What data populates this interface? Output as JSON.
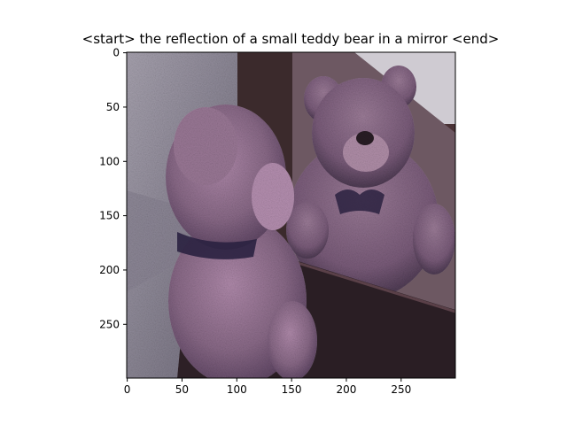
{
  "figure": {
    "title": "<start> the reflection of a small teddy bear in a mirror <end>",
    "image_alt": "reflection of a small teddy bear in a mirror",
    "image_size": [
      300,
      300
    ],
    "x_ticks": [
      0,
      50,
      100,
      150,
      200,
      250
    ],
    "y_ticks": [
      0,
      50,
      100,
      150,
      200,
      250
    ],
    "colors": {
      "background": "#ffffff",
      "axis": "#000000",
      "bear_fur": "#8a6a88",
      "bear_fur_light": "#a884a4",
      "bear_fur_dark": "#5d4660",
      "carpet": "#8d8796",
      "wood_frame": "#3b2a2c",
      "mirror_bg": "#7d6a74",
      "wall": "#c9c6cc",
      "floor": "#2d2026",
      "bow": "#2a2140"
    }
  }
}
